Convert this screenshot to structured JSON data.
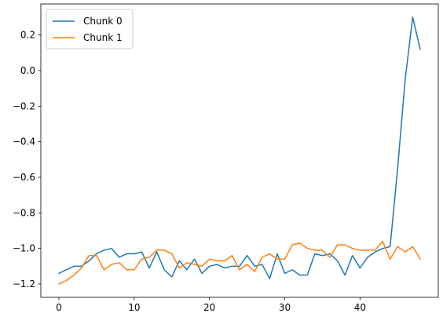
{
  "chart_data": {
    "type": "line",
    "title": "",
    "xlabel": "",
    "ylabel": "",
    "xlim": [
      -2.4,
      50.4
    ],
    "ylim": [
      -1.275,
      0.375
    ],
    "xticks": [
      0,
      10,
      20,
      30,
      40
    ],
    "yticks": [
      -1.2,
      -1.0,
      -0.8,
      -0.6,
      -0.4,
      -0.2,
      0.0,
      0.2
    ],
    "xtick_labels": [
      "0",
      "10",
      "20",
      "30",
      "40"
    ],
    "ytick_labels": [
      "−1.2",
      "−1.0",
      "−0.8",
      "−0.6",
      "−0.4",
      "−0.2",
      "0.0",
      "0.2"
    ],
    "grid": false,
    "legend_position": "upper-left",
    "x": [
      0,
      1,
      2,
      3,
      4,
      5,
      6,
      7,
      8,
      9,
      10,
      11,
      12,
      13,
      14,
      15,
      16,
      17,
      18,
      19,
      20,
      21,
      22,
      23,
      24,
      25,
      26,
      27,
      28,
      29,
      30,
      31,
      32,
      33,
      34,
      35,
      36,
      37,
      38,
      39,
      40,
      41,
      42,
      43,
      44,
      45,
      46,
      47,
      48
    ],
    "series": [
      {
        "name": "Chunk 0",
        "color": "#1f77b4",
        "values": [
          -1.14,
          -1.12,
          -1.1,
          -1.1,
          -1.07,
          -1.03,
          -1.01,
          -1.0,
          -1.05,
          -1.03,
          -1.03,
          -1.02,
          -1.11,
          -1.02,
          -1.12,
          -1.16,
          -1.07,
          -1.12,
          -1.06,
          -1.14,
          -1.1,
          -1.09,
          -1.11,
          -1.1,
          -1.1,
          -1.04,
          -1.1,
          -1.09,
          -1.17,
          -1.03,
          -1.14,
          -1.12,
          -1.15,
          -1.15,
          -1.03,
          -1.04,
          -1.03,
          -1.07,
          -1.15,
          -1.04,
          -1.11,
          -1.05,
          -1.02,
          -1.0,
          -0.99,
          -0.55,
          -0.05,
          0.3,
          0.12
        ]
      },
      {
        "name": "Chunk 1",
        "color": "#ff7f0e",
        "values": [
          -1.2,
          -1.18,
          -1.15,
          -1.11,
          -1.04,
          -1.04,
          -1.12,
          -1.09,
          -1.08,
          -1.12,
          -1.12,
          -1.06,
          -1.05,
          -1.01,
          -1.01,
          -1.03,
          -1.11,
          -1.08,
          -1.09,
          -1.1,
          -1.06,
          -1.07,
          -1.07,
          -1.04,
          -1.12,
          -1.09,
          -1.13,
          -1.05,
          -1.03,
          -1.06,
          -1.06,
          -0.98,
          -0.97,
          -1.0,
          -1.01,
          -1.01,
          -1.05,
          -0.98,
          -0.98,
          -1.0,
          -1.01,
          -1.01,
          -1.01,
          -0.96,
          -1.06,
          -0.99,
          -1.02,
          -0.99,
          -1.06
        ]
      }
    ]
  }
}
